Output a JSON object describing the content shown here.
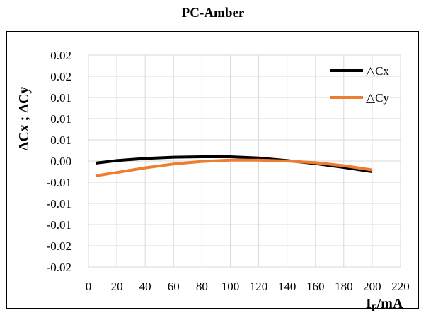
{
  "chart_data": {
    "type": "line",
    "title": "PC-Amber",
    "xlabel_main": "I",
    "xlabel_sub": "F",
    "xlabel_rest": "/mA",
    "ylabel": "ΔCx ; ΔCy",
    "xlim": [
      0,
      220
    ],
    "ylim": [
      -0.025,
      0.025
    ],
    "x_ticks": [
      0,
      20,
      40,
      60,
      80,
      100,
      120,
      140,
      160,
      180,
      200,
      220
    ],
    "x_tick_labels": [
      "0",
      "20",
      "40",
      "60",
      "80",
      "100",
      "120",
      "140",
      "160",
      "180",
      "200",
      "220"
    ],
    "y_ticks": [
      -0.025,
      -0.02,
      -0.015,
      -0.01,
      -0.005,
      0,
      0.005,
      0.01,
      0.015,
      0.02,
      0.025
    ],
    "y_tick_labels": [
      "-0.02",
      "-0.02",
      "-0.01",
      "-0.01",
      "-0.01",
      "0.00",
      "0.01",
      "0.01",
      "0.01",
      "0.02",
      "0.02"
    ],
    "grid": true,
    "legend_position": "top-right",
    "series": [
      {
        "name": "△Cx",
        "color": "#000000",
        "x": [
          5,
          20,
          40,
          60,
          80,
          100,
          120,
          140,
          160,
          180,
          200
        ],
        "y": [
          -0.0005,
          0.0001,
          0.0006,
          0.0009,
          0.001,
          0.001,
          0.0007,
          0.0001,
          -0.0006,
          -0.0015,
          -0.0025
        ]
      },
      {
        "name": "△Cy",
        "color": "#ED7D31",
        "x": [
          5,
          20,
          40,
          60,
          80,
          100,
          120,
          140,
          160,
          180,
          200
        ],
        "y": [
          -0.0035,
          -0.0027,
          -0.0016,
          -0.0007,
          -0.0001,
          0.0002,
          0.0002,
          0.0,
          -0.0004,
          -0.0011,
          -0.0021
        ]
      }
    ]
  }
}
